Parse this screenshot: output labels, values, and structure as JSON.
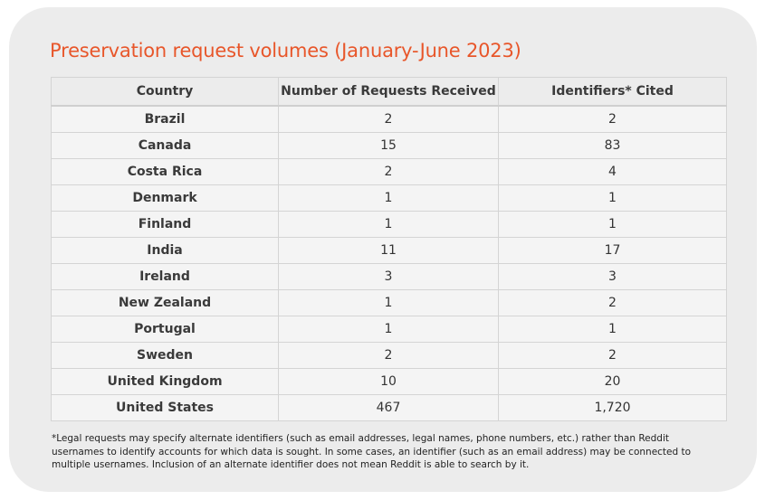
{
  "title": "Preservation request volumes (January-June 2023)",
  "table": {
    "headers": [
      "Country",
      "Number of Requests Received",
      "Identifiers* Cited"
    ],
    "rows": [
      [
        "Brazil",
        "2",
        "2"
      ],
      [
        "Canada",
        "15",
        "83"
      ],
      [
        "Costa Rica",
        "2",
        "4"
      ],
      [
        "Denmark",
        "1",
        "1"
      ],
      [
        "Finland",
        "1",
        "1"
      ],
      [
        "India",
        "11",
        "17"
      ],
      [
        "Ireland",
        "3",
        "3"
      ],
      [
        "New Zealand",
        "1",
        "2"
      ],
      [
        "Portugal",
        "1",
        "1"
      ],
      [
        "Sweden",
        "2",
        "2"
      ],
      [
        "United Kingdom",
        "10",
        "20"
      ],
      [
        "United States",
        "467",
        "1,720"
      ]
    ]
  },
  "footnote": "*Legal requests may specify alternate identifiers (such as email addresses, legal names, phone numbers, etc.) rather than Reddit usernames to identify accounts for which data is sought. In some cases, an identifier (such as an email address) may be connected to multiple usernames. Inclusion of an alternate identifier does not mean Reddit is able to search by it."
}
